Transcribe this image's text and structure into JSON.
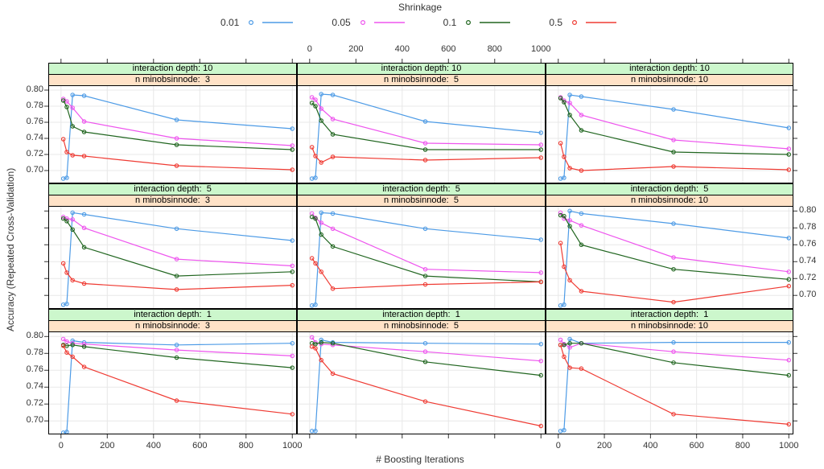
{
  "chart_data": {
    "type": "line",
    "legend_title": "Shrinkage",
    "xlabel": "# Boosting Iterations",
    "ylabel": "Accuracy (Repeated Cross-Validation)",
    "x": [
      10,
      25,
      50,
      100,
      500,
      1000
    ],
    "xlim": [
      -55,
      1020
    ],
    "ylim": [
      0.684,
      0.806
    ],
    "x_ticks": [
      0,
      200,
      400,
      600,
      800,
      1000
    ],
    "y_ticks": [
      0.7,
      0.72,
      0.74,
      0.76,
      0.78,
      0.8
    ],
    "grid": true,
    "legend_position": "top",
    "legend": [
      {
        "label": "0.01",
        "color": "#4D9BE6"
      },
      {
        "label": "0.05",
        "color": "#EE55EE"
      },
      {
        "label": "0.1",
        "color": "#20651F"
      },
      {
        "label": "0.5",
        "color": "#EF3B33"
      }
    ],
    "colors": {
      "panel_border": "#000000",
      "grid_line": "#E8E8E8",
      "strip_green": "#CCF7CC",
      "strip_orange": "#FFE2C7",
      "tick": "#333333"
    },
    "panels": [
      {
        "strip_top": "interaction depth: 10",
        "strip_bottom": "n minobsinnode:  3",
        "series": [
          {
            "name": "0.01",
            "values": [
              0.69,
              0.691,
              0.794,
              0.793,
              0.763,
              0.752
            ]
          },
          {
            "name": "0.05",
            "values": [
              0.789,
              0.786,
              0.778,
              0.761,
              0.74,
              0.731
            ]
          },
          {
            "name": "0.1",
            "values": [
              0.787,
              0.779,
              0.755,
              0.748,
              0.732,
              0.726
            ]
          },
          {
            "name": "0.5",
            "values": [
              0.739,
              0.723,
              0.719,
              0.718,
              0.706,
              0.701
            ]
          }
        ]
      },
      {
        "strip_top": "interaction depth: 10",
        "strip_bottom": "n minobsinnode:  5",
        "series": [
          {
            "name": "0.01",
            "values": [
              0.69,
              0.691,
              0.795,
              0.794,
              0.761,
              0.747
            ]
          },
          {
            "name": "0.05",
            "values": [
              0.791,
              0.788,
              0.777,
              0.764,
              0.734,
              0.732
            ]
          },
          {
            "name": "0.1",
            "values": [
              0.784,
              0.78,
              0.762,
              0.745,
              0.726,
              0.726
            ]
          },
          {
            "name": "0.5",
            "values": [
              0.729,
              0.718,
              0.71,
              0.717,
              0.713,
              0.716
            ]
          }
        ]
      },
      {
        "strip_top": "interaction depth: 10",
        "strip_bottom": "n minobsinnode: 10",
        "series": [
          {
            "name": "0.01",
            "values": [
              0.69,
              0.691,
              0.794,
              0.792,
              0.776,
              0.753
            ]
          },
          {
            "name": "0.05",
            "values": [
              0.791,
              0.787,
              0.784,
              0.769,
              0.738,
              0.727
            ]
          },
          {
            "name": "0.1",
            "values": [
              0.79,
              0.785,
              0.769,
              0.75,
              0.723,
              0.72
            ]
          },
          {
            "name": "0.5",
            "values": [
              0.734,
              0.717,
              0.703,
              0.7,
              0.705,
              0.701
            ]
          }
        ]
      },
      {
        "strip_top": "interaction depth:  5",
        "strip_bottom": "n minobsinnode:  3",
        "series": [
          {
            "name": "0.01",
            "values": [
              0.689,
              0.69,
              0.798,
              0.796,
              0.779,
              0.765
            ]
          },
          {
            "name": "0.05",
            "values": [
              0.793,
              0.791,
              0.79,
              0.78,
              0.743,
              0.735
            ]
          },
          {
            "name": "0.1",
            "values": [
              0.791,
              0.788,
              0.778,
              0.757,
              0.723,
              0.728
            ]
          },
          {
            "name": "0.5",
            "values": [
              0.738,
              0.727,
              0.718,
              0.714,
              0.707,
              0.712
            ]
          }
        ]
      },
      {
        "strip_top": "interaction depth:  5",
        "strip_bottom": "n minobsinnode:  5",
        "series": [
          {
            "name": "0.01",
            "values": [
              0.688,
              0.689,
              0.798,
              0.797,
              0.779,
              0.766
            ]
          },
          {
            "name": "0.05",
            "values": [
              0.797,
              0.792,
              0.786,
              0.779,
              0.731,
              0.727
            ]
          },
          {
            "name": "0.1",
            "values": [
              0.793,
              0.791,
              0.772,
              0.758,
              0.723,
              0.716
            ]
          },
          {
            "name": "0.5",
            "values": [
              0.744,
              0.738,
              0.728,
              0.708,
              0.713,
              0.716
            ]
          }
        ]
      },
      {
        "strip_top": "interaction depth:  5",
        "strip_bottom": "n minobsinnode: 10",
        "series": [
          {
            "name": "0.01",
            "values": [
              0.688,
              0.689,
              0.8,
              0.797,
              0.785,
              0.768
            ]
          },
          {
            "name": "0.05",
            "values": [
              0.798,
              0.791,
              0.789,
              0.783,
              0.745,
              0.728
            ]
          },
          {
            "name": "0.1",
            "values": [
              0.795,
              0.794,
              0.782,
              0.76,
              0.731,
              0.719
            ]
          },
          {
            "name": "0.5",
            "values": [
              0.762,
              0.734,
              0.718,
              0.705,
              0.692,
              0.711
            ]
          }
        ]
      },
      {
        "strip_top": "interaction depth:  1",
        "strip_bottom": "n minobsinnode:  3",
        "series": [
          {
            "name": "0.01",
            "values": [
              0.686,
              0.687,
              0.795,
              0.793,
              0.79,
              0.792
            ]
          },
          {
            "name": "0.05",
            "values": [
              0.797,
              0.794,
              0.792,
              0.791,
              0.784,
              0.777
            ]
          },
          {
            "name": "0.1",
            "values": [
              0.79,
              0.789,
              0.79,
              0.788,
              0.775,
              0.763
            ]
          },
          {
            "name": "0.5",
            "values": [
              0.789,
              0.781,
              0.776,
              0.764,
              0.724,
              0.708
            ]
          }
        ]
      },
      {
        "strip_top": "interaction depth:  1",
        "strip_bottom": "n minobsinnode:  5",
        "series": [
          {
            "name": "0.01",
            "values": [
              0.688,
              0.688,
              0.796,
              0.793,
              0.792,
              0.791
            ]
          },
          {
            "name": "0.05",
            "values": [
              0.799,
              0.793,
              0.791,
              0.79,
              0.782,
              0.771
            ]
          },
          {
            "name": "0.1",
            "values": [
              0.792,
              0.791,
              0.793,
              0.792,
              0.77,
              0.754
            ]
          },
          {
            "name": "0.5",
            "values": [
              0.788,
              0.786,
              0.772,
              0.756,
              0.723,
              0.694
            ]
          }
        ]
      },
      {
        "strip_top": "interaction depth:  1",
        "strip_bottom": "n minobsinnode: 10",
        "series": [
          {
            "name": "0.01",
            "values": [
              0.688,
              0.689,
              0.797,
              0.792,
              0.793,
              0.793
            ]
          },
          {
            "name": "0.05",
            "values": [
              0.796,
              0.791,
              0.787,
              0.792,
              0.782,
              0.772
            ]
          },
          {
            "name": "0.1",
            "values": [
              0.79,
              0.79,
              0.792,
              0.792,
              0.769,
              0.754
            ]
          },
          {
            "name": "0.5",
            "values": [
              0.79,
              0.776,
              0.763,
              0.762,
              0.708,
              0.696
            ]
          }
        ]
      }
    ]
  }
}
